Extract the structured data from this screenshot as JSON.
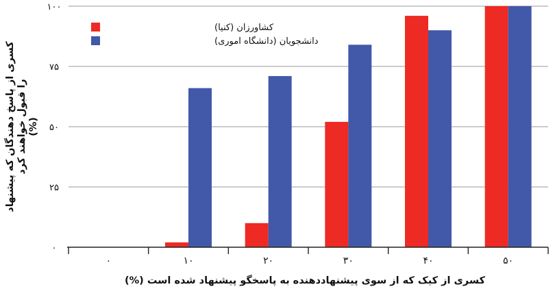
{
  "chart_data": {
    "type": "bar",
    "title": "",
    "xlabel": "کسری از کیک که از سوی پیشنهاددهنده به پاسخگو پیشنهاد شده است (%)",
    "ylabel_lines": [
      "کسری از پاسخ دهندگان که پیشنهاد",
      "را قبول خواهند کرد",
      "(%)"
    ],
    "categories": [
      "۰",
      "۱۰",
      "۲۰",
      "۳۰",
      "۴۰",
      "۵۰"
    ],
    "y_ticks": [
      {
        "value": 0,
        "label": "۰"
      },
      {
        "value": 25,
        "label": "۲۵"
      },
      {
        "value": 50,
        "label": "۵۰"
      },
      {
        "value": 75,
        "label": "۷۵"
      },
      {
        "value": 100,
        "label": "۱۰۰"
      }
    ],
    "ylim": [
      0,
      100
    ],
    "grid": true,
    "legend_position": "top-left",
    "series": [
      {
        "name": "کشاورزان (کنیا)",
        "color": "#ee2a24",
        "values": [
          0,
          2,
          10,
          52,
          96,
          100
        ]
      },
      {
        "name": "دانشجویان (دانشگاه اموری)",
        "color": "#4258a8",
        "values": [
          0,
          66,
          71,
          84,
          90,
          100
        ]
      }
    ]
  }
}
